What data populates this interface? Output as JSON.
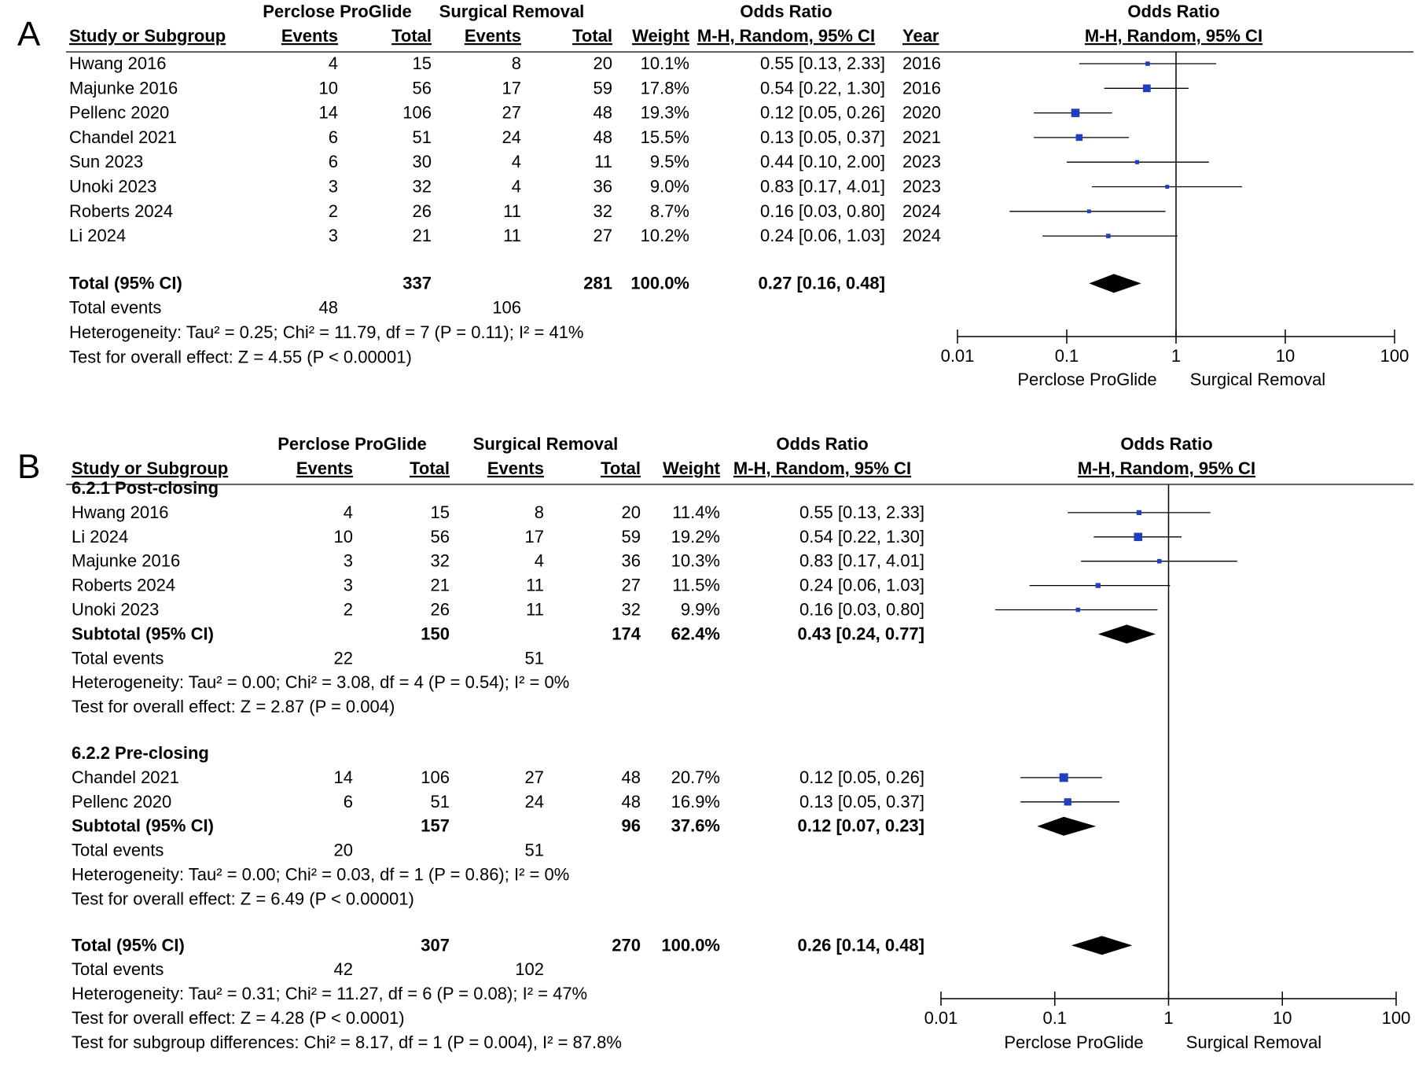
{
  "colors": {
    "marker": "#1f3fbf",
    "line": "#000000",
    "background": "#ffffff"
  },
  "chart_data": [
    {
      "type": "forest",
      "panel_label": "A",
      "group_headers": {
        "experimental": "Perclose ProGlide",
        "control": "Surgical Removal",
        "effect_table": "Odds Ratio",
        "effect_plot": "Odds Ratio"
      },
      "column_headers": {
        "study": "Study or Subgroup",
        "events_e": "Events",
        "total_e": "Total",
        "events_c": "Events",
        "total_c": "Total",
        "weight": "Weight",
        "effect": "M-H, Random, 95% CI",
        "year": "Year",
        "plot": "M-H, Random, 95% CI"
      },
      "x_scale": "log",
      "xlim": [
        0.01,
        100
      ],
      "x_ticks": [
        "0.01",
        "0.1",
        "1",
        "10",
        "100"
      ],
      "favours_left": "Perclose ProGlide",
      "favours_right": "Surgical Removal",
      "rows": [
        {
          "kind": "study",
          "name": "Hwang 2016",
          "ev_e": "4",
          "tot_e": "15",
          "ev_c": "8",
          "tot_c": "20",
          "weight": "10.1%",
          "ci_text": "0.55 [0.13, 2.33]",
          "year": "2016",
          "or": 0.55,
          "lo": 0.13,
          "hi": 2.33
        },
        {
          "kind": "study",
          "name": "Majunke 2016",
          "ev_e": "10",
          "tot_e": "56",
          "ev_c": "17",
          "tot_c": "59",
          "weight": "17.8%",
          "ci_text": "0.54 [0.22, 1.30]",
          "year": "2016",
          "or": 0.54,
          "lo": 0.22,
          "hi": 1.3
        },
        {
          "kind": "study",
          "name": "Pellenc 2020",
          "ev_e": "14",
          "tot_e": "106",
          "ev_c": "27",
          "tot_c": "48",
          "weight": "19.3%",
          "ci_text": "0.12 [0.05, 0.26]",
          "year": "2020",
          "or": 0.12,
          "lo": 0.05,
          "hi": 0.26
        },
        {
          "kind": "study",
          "name": "Chandel 2021",
          "ev_e": "6",
          "tot_e": "51",
          "ev_c": "24",
          "tot_c": "48",
          "weight": "15.5%",
          "ci_text": "0.13 [0.05, 0.37]",
          "year": "2021",
          "or": 0.13,
          "lo": 0.05,
          "hi": 0.37
        },
        {
          "kind": "study",
          "name": "Sun 2023",
          "ev_e": "6",
          "tot_e": "30",
          "ev_c": "4",
          "tot_c": "11",
          "weight": "9.5%",
          "ci_text": "0.44 [0.10, 2.00]",
          "year": "2023",
          "or": 0.44,
          "lo": 0.1,
          "hi": 2.0
        },
        {
          "kind": "study",
          "name": "Unoki 2023",
          "ev_e": "3",
          "tot_e": "32",
          "ev_c": "4",
          "tot_c": "36",
          "weight": "9.0%",
          "ci_text": "0.83 [0.17, 4.01]",
          "year": "2023",
          "or": 0.83,
          "lo": 0.17,
          "hi": 4.01
        },
        {
          "kind": "study",
          "name": "Roberts 2024",
          "ev_e": "2",
          "tot_e": "26",
          "ev_c": "11",
          "tot_c": "32",
          "weight": "8.7%",
          "ci_text": "0.16 [0.03, 0.80]",
          "year": "2024",
          "or": 0.16,
          "lo": 0.03,
          "hi": 0.8
        },
        {
          "kind": "study",
          "name": "Li 2024",
          "ev_e": "3",
          "tot_e": "21",
          "ev_c": "11",
          "tot_c": "27",
          "weight": "10.2%",
          "ci_text": "0.24 [0.06, 1.03]",
          "year": "2024",
          "or": 0.24,
          "lo": 0.06,
          "hi": 1.03
        },
        {
          "kind": "gap"
        },
        {
          "kind": "pooled",
          "name": "Total (95% CI)",
          "tot_e": "337",
          "tot_c": "281",
          "weight": "100.0%",
          "ci_text": "0.27 [0.16, 0.48]",
          "or": 0.27,
          "lo": 0.16,
          "hi": 0.48
        },
        {
          "kind": "events",
          "name": "Total events",
          "ev_e": "48",
          "ev_c": "106"
        },
        {
          "kind": "note",
          "text": "Heterogeneity: Tau² = 0.25; Chi² = 11.79, df = 7 (P = 0.11); I² = 41%"
        },
        {
          "kind": "note",
          "text": "Test for overall effect: Z = 4.55 (P < 0.00001)"
        }
      ]
    },
    {
      "type": "forest",
      "panel_label": "B",
      "group_headers": {
        "experimental": "Perclose ProGlide",
        "control": "Surgical Removal",
        "effect_table": "Odds Ratio",
        "effect_plot": "Odds Ratio"
      },
      "column_headers": {
        "study": "Study or Subgroup",
        "events_e": "Events",
        "total_e": "Total",
        "events_c": "Events",
        "total_c": "Total",
        "weight": "Weight",
        "effect": "M-H, Random, 95% CI",
        "plot": "M-H, Random, 95% CI"
      },
      "x_scale": "log",
      "xlim": [
        0.01,
        100
      ],
      "x_ticks": [
        "0.01",
        "0.1",
        "1",
        "10",
        "100"
      ],
      "favours_left": "Perclose ProGlide",
      "favours_right": "Surgical Removal",
      "rows": [
        {
          "kind": "subgroup",
          "name": "6.2.1 Post-closing"
        },
        {
          "kind": "study",
          "name": "Hwang 2016",
          "ev_e": "4",
          "tot_e": "15",
          "ev_c": "8",
          "tot_c": "20",
          "weight": "11.4%",
          "ci_text": "0.55 [0.13, 2.33]",
          "or": 0.55,
          "lo": 0.13,
          "hi": 2.33
        },
        {
          "kind": "study",
          "name": "Li 2024",
          "ev_e": "10",
          "tot_e": "56",
          "ev_c": "17",
          "tot_c": "59",
          "weight": "19.2%",
          "ci_text": "0.54 [0.22, 1.30]",
          "or": 0.54,
          "lo": 0.22,
          "hi": 1.3
        },
        {
          "kind": "study",
          "name": "Majunke 2016",
          "ev_e": "3",
          "tot_e": "32",
          "ev_c": "4",
          "tot_c": "36",
          "weight": "10.3%",
          "ci_text": "0.83 [0.17, 4.01]",
          "or": 0.83,
          "lo": 0.17,
          "hi": 4.01
        },
        {
          "kind": "study",
          "name": "Roberts 2024",
          "ev_e": "3",
          "tot_e": "21",
          "ev_c": "11",
          "tot_c": "27",
          "weight": "11.5%",
          "ci_text": "0.24 [0.06, 1.03]",
          "or": 0.24,
          "lo": 0.06,
          "hi": 1.03
        },
        {
          "kind": "study",
          "name": "Unoki 2023",
          "ev_e": "2",
          "tot_e": "26",
          "ev_c": "11",
          "tot_c": "32",
          "weight": "9.9%",
          "ci_text": "0.16 [0.03, 0.80]",
          "or": 0.16,
          "lo": 0.03,
          "hi": 0.8
        },
        {
          "kind": "pooled",
          "name": "Subtotal (95% CI)",
          "tot_e": "150",
          "tot_c": "174",
          "weight": "62.4%",
          "ci_text": "0.43 [0.24, 0.77]",
          "or": 0.43,
          "lo": 0.24,
          "hi": 0.77
        },
        {
          "kind": "events",
          "name": "Total events",
          "ev_e": "22",
          "ev_c": "51"
        },
        {
          "kind": "note",
          "text": "Heterogeneity: Tau² = 0.00; Chi² = 3.08, df = 4 (P = 0.54); I² = 0%"
        },
        {
          "kind": "note",
          "text": "Test for overall effect: Z = 2.87 (P = 0.004)"
        },
        {
          "kind": "gap"
        },
        {
          "kind": "subgroup",
          "name": "6.2.2 Pre-closing"
        },
        {
          "kind": "study",
          "name": "Chandel 2021",
          "ev_e": "14",
          "tot_e": "106",
          "ev_c": "27",
          "tot_c": "48",
          "weight": "20.7%",
          "ci_text": "0.12 [0.05, 0.26]",
          "or": 0.12,
          "lo": 0.05,
          "hi": 0.26
        },
        {
          "kind": "study",
          "name": "Pellenc 2020",
          "ev_e": "6",
          "tot_e": "51",
          "ev_c": "24",
          "tot_c": "48",
          "weight": "16.9%",
          "ci_text": "0.13 [0.05, 0.37]",
          "or": 0.13,
          "lo": 0.05,
          "hi": 0.37
        },
        {
          "kind": "pooled",
          "name": "Subtotal (95% CI)",
          "tot_e": "157",
          "tot_c": "96",
          "weight": "37.6%",
          "ci_text": "0.12 [0.07, 0.23]",
          "or": 0.12,
          "lo": 0.07,
          "hi": 0.23
        },
        {
          "kind": "events",
          "name": "Total events",
          "ev_e": "20",
          "ev_c": "51"
        },
        {
          "kind": "note",
          "text": "Heterogeneity: Tau² = 0.00; Chi² = 0.03, df = 1 (P = 0.86); I² = 0%"
        },
        {
          "kind": "note",
          "text": "Test for overall effect: Z = 6.49 (P < 0.00001)"
        },
        {
          "kind": "gap"
        },
        {
          "kind": "pooled",
          "name": "Total (95% CI)",
          "tot_e": "307",
          "tot_c": "270",
          "weight": "100.0%",
          "ci_text": "0.26 [0.14, 0.48]",
          "or": 0.26,
          "lo": 0.14,
          "hi": 0.48
        },
        {
          "kind": "events",
          "name": "Total events",
          "ev_e": "42",
          "ev_c": "102"
        },
        {
          "kind": "note",
          "text": "Heterogeneity: Tau² = 0.31; Chi² = 11.27, df = 6 (P = 0.08); I² = 47%"
        },
        {
          "kind": "note",
          "text": "Test for overall effect: Z = 4.28 (P < 0.0001)"
        },
        {
          "kind": "note",
          "text": "Test for subgroup differences: Chi² = 8.17, df = 1 (P = 0.004), I² = 87.8%"
        }
      ]
    }
  ]
}
